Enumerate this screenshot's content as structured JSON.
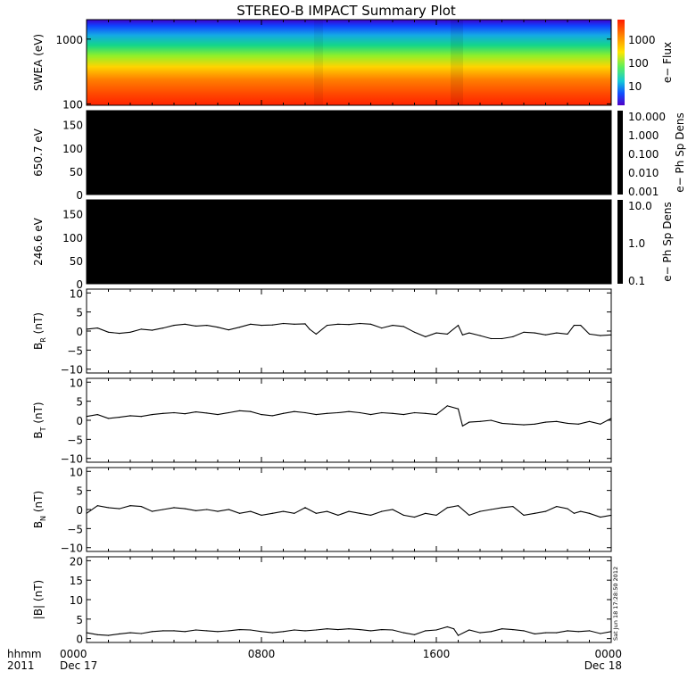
{
  "title": "STEREO-B IMPACT Summary Plot",
  "stamp": "Sat Jun 18 17:28:50 2012",
  "time_axis": {
    "row1": [
      "hhmm",
      "0000",
      "0800",
      "1600",
      "0000"
    ],
    "row2": [
      "2011",
      "Dec 17",
      "",
      "",
      "Dec 18"
    ],
    "hours": [
      0,
      8,
      16,
      24
    ]
  },
  "chart_data": [
    {
      "type": "heatmap",
      "ylabel": "SWEA (eV)",
      "ylim": [
        95,
        2000
      ],
      "log_y": true,
      "y_ticks": [
        100,
        1000
      ],
      "y_tick_labels": [
        "100",
        "1000"
      ],
      "colorbar": {
        "label": "e− Flux",
        "tick_labels": [
          "1000",
          "100",
          "10"
        ],
        "colors": [
          "#ff2a00",
          "#ff7f00",
          "#ffd400",
          "#8ef02a",
          "#14d68a",
          "#14a8e6",
          "#1040ff",
          "#3f00c8"
        ]
      }
    },
    {
      "type": "heatmap",
      "ylabel": "650.7 eV",
      "ylim": [
        0,
        180
      ],
      "y_ticks": [
        0,
        50,
        100,
        150
      ],
      "y_tick_labels": [
        "0",
        "50",
        "100",
        "150"
      ],
      "fill": "#000000",
      "colorbar": {
        "label": "e− Ph Sp Dens",
        "tick_labels": [
          "10.000",
          "1.000",
          "0.100",
          "0.010",
          "0.001"
        ]
      }
    },
    {
      "type": "heatmap",
      "ylabel": "246.6 eV",
      "ylim": [
        0,
        180
      ],
      "y_ticks": [
        0,
        50,
        100,
        150
      ],
      "y_tick_labels": [
        "0",
        "50",
        "100",
        "150"
      ],
      "fill": "#000000",
      "colorbar": {
        "label": "e− Ph Sp Dens",
        "tick_labels": [
          "10.0",
          "1.0",
          "0.1"
        ]
      }
    },
    {
      "type": "line",
      "ylabel": "B",
      "ylabel_sub": "R",
      "ylabel_unit": "(nT)",
      "ylim": [
        -11,
        11
      ],
      "y_ticks": [
        -10,
        -5,
        0,
        5,
        10
      ],
      "y_tick_labels": [
        "−10",
        "−5",
        "0",
        "5",
        "10"
      ],
      "x": [
        0,
        0.5,
        1,
        1.5,
        2,
        2.5,
        3,
        3.5,
        4,
        4.5,
        5,
        5.5,
        6,
        6.5,
        7,
        7.5,
        8,
        8.5,
        9,
        9.5,
        10,
        10.2,
        10.5,
        11,
        11.5,
        12,
        12.5,
        13,
        13.5,
        14,
        14.5,
        15,
        15.5,
        16,
        16.5,
        17,
        17.2,
        17.5,
        18,
        18.5,
        19,
        19.5,
        20,
        20.5,
        21,
        21.5,
        22,
        22.3,
        22.6,
        23,
        23.5,
        24
      ],
      "values": [
        0.5,
        0.8,
        -0.3,
        -0.6,
        -0.3,
        0.5,
        0.2,
        0.8,
        1.5,
        1.8,
        1.3,
        1.5,
        1.0,
        0.3,
        1.0,
        1.8,
        1.5,
        1.6,
        2.0,
        1.8,
        1.9,
        0.5,
        -0.8,
        1.5,
        1.8,
        1.7,
        2.0,
        1.8,
        0.8,
        1.5,
        1.2,
        -0.3,
        -1.5,
        -0.5,
        -0.8,
        1.5,
        -1.0,
        -0.5,
        -1.2,
        -2.0,
        -2.0,
        -1.5,
        -0.3,
        -0.5,
        -1.0,
        -0.5,
        -0.8,
        1.5,
        1.5,
        -0.8,
        -1.2,
        -1.0
      ]
    },
    {
      "type": "line",
      "ylabel": "B",
      "ylabel_sub": "T",
      "ylabel_unit": "(nT)",
      "ylim": [
        -11,
        11
      ],
      "y_ticks": [
        -10,
        -5,
        0,
        5,
        10
      ],
      "y_tick_labels": [
        "−10",
        "−5",
        "0",
        "5",
        "10"
      ],
      "x": [
        0,
        0.5,
        1,
        1.5,
        2,
        2.5,
        3,
        3.5,
        4,
        4.5,
        5,
        5.5,
        6,
        6.5,
        7,
        7.5,
        8,
        8.5,
        9,
        9.5,
        10,
        10.5,
        11,
        11.5,
        12,
        12.5,
        13,
        13.5,
        14,
        14.5,
        15,
        15.5,
        16,
        16.5,
        17,
        17.2,
        17.5,
        18,
        18.5,
        19,
        19.5,
        20,
        20.5,
        21,
        21.5,
        22,
        22.5,
        23,
        23.5,
        24
      ],
      "values": [
        1.0,
        1.5,
        0.5,
        0.8,
        1.2,
        1.0,
        1.5,
        1.8,
        2.0,
        1.7,
        2.2,
        1.9,
        1.5,
        2.0,
        2.5,
        2.3,
        1.5,
        1.2,
        1.8,
        2.3,
        2.0,
        1.5,
        1.8,
        2.0,
        2.3,
        2.0,
        1.5,
        2.0,
        1.8,
        1.5,
        2.0,
        1.8,
        1.5,
        3.8,
        3.0,
        -1.5,
        -0.5,
        -0.3,
        0.0,
        -0.8,
        -1.0,
        -1.2,
        -1.0,
        -0.5,
        -0.3,
        -0.8,
        -1.0,
        -0.3,
        -1.0,
        0.5
      ]
    },
    {
      "type": "line",
      "ylabel": "B",
      "ylabel_sub": "N",
      "ylabel_unit": "(nT)",
      "ylim": [
        -11,
        11
      ],
      "y_ticks": [
        -10,
        -5,
        0,
        5,
        10
      ],
      "y_tick_labels": [
        "−10",
        "−5",
        "0",
        "5",
        "10"
      ],
      "x": [
        0,
        0.5,
        1,
        1.5,
        2,
        2.5,
        3,
        3.5,
        4,
        4.5,
        5,
        5.5,
        6,
        6.5,
        7,
        7.5,
        8,
        8.5,
        9,
        9.5,
        10,
        10.5,
        11,
        11.5,
        12,
        12.5,
        13,
        13.5,
        14,
        14.5,
        15,
        15.5,
        16,
        16.5,
        17,
        17.5,
        18,
        18.5,
        19,
        19.5,
        20,
        20.5,
        21,
        21.5,
        22,
        22.3,
        22.6,
        23,
        23.5,
        24
      ],
      "values": [
        -1.0,
        1.0,
        0.5,
        0.2,
        1.0,
        0.8,
        -0.5,
        0.0,
        0.5,
        0.2,
        -0.3,
        0.0,
        -0.5,
        0.0,
        -1.0,
        -0.5,
        -1.5,
        -1.0,
        -0.5,
        -1.0,
        0.5,
        -1.0,
        -0.5,
        -1.5,
        -0.5,
        -1.0,
        -1.5,
        -0.5,
        0.0,
        -1.5,
        -2.0,
        -1.0,
        -1.5,
        0.5,
        1.0,
        -1.5,
        -0.5,
        0.0,
        0.5,
        0.8,
        -1.5,
        -1.0,
        -0.5,
        0.8,
        0.2,
        -1.0,
        -0.5,
        -1.0,
        -2.0,
        -1.5
      ]
    },
    {
      "type": "line",
      "ylabel": "|B|",
      "ylabel_unit": "(nT)",
      "ylim": [
        -1,
        21
      ],
      "y_ticks": [
        0,
        5,
        10,
        15,
        20
      ],
      "y_tick_labels": [
        "0",
        "5",
        "10",
        "15",
        "20"
      ],
      "x": [
        0,
        0.5,
        1,
        1.5,
        2,
        2.5,
        3,
        3.5,
        4,
        4.5,
        5,
        5.5,
        6,
        6.5,
        7,
        7.5,
        8,
        8.5,
        9,
        9.5,
        10,
        10.5,
        11,
        11.5,
        12,
        12.5,
        13,
        13.5,
        14,
        14.5,
        15,
        15.5,
        16,
        16.5,
        16.8,
        17,
        17.5,
        18,
        18.5,
        19,
        19.5,
        20,
        20.5,
        21,
        21.5,
        22,
        22.5,
        23,
        23.5,
        24
      ],
      "values": [
        1.5,
        1.0,
        0.8,
        1.2,
        1.5,
        1.3,
        1.8,
        2.0,
        2.0,
        1.8,
        2.2,
        2.0,
        1.8,
        2.0,
        2.3,
        2.2,
        1.8,
        1.5,
        1.8,
        2.2,
        2.0,
        2.2,
        2.5,
        2.3,
        2.5,
        2.3,
        2.0,
        2.3,
        2.2,
        1.5,
        1.0,
        2.0,
        2.2,
        3.0,
        2.5,
        0.8,
        2.2,
        1.5,
        1.8,
        2.5,
        2.3,
        2.0,
        1.2,
        1.5,
        1.5,
        2.0,
        1.8,
        2.0,
        1.3,
        1.8
      ]
    }
  ]
}
